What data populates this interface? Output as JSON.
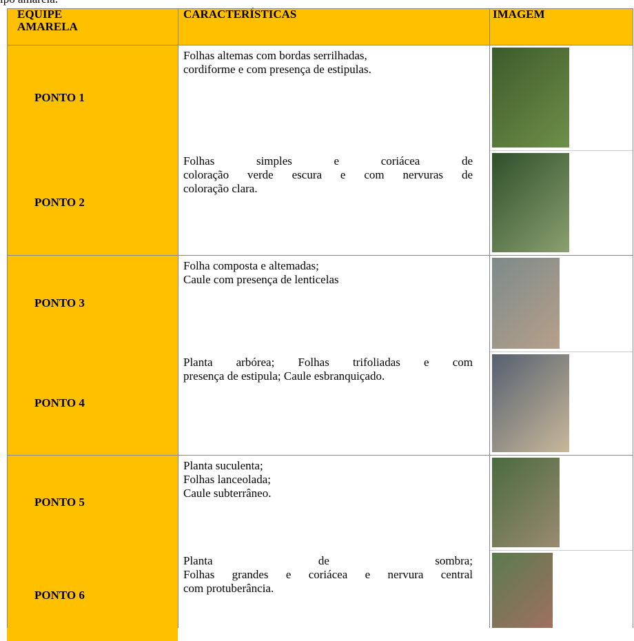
{
  "caption": "ipo amarela:",
  "table": {
    "header": [
      "EQUIPE AMARELA",
      "CARACTERÍSTICAS",
      "IMAGEM"
    ],
    "rows": [
      {
        "label": "PONTO 1",
        "lines": [
          "Folhas altemas com bordas serrilhadas,",
          "cordiforme e com presença de estipulas."
        ]
      },
      {
        "label": "PONTO 2",
        "lines": [
          "Folhas simples e coriácea de",
          "coloração verde escura e com nervuras de",
          "coloração clara."
        ]
      },
      {
        "label": "PONTO 3",
        "lines": [
          "Folha composta e altemadas;",
          "Caule com presença de lenticelas"
        ]
      },
      {
        "label": "PONTO 4",
        "lines": [
          "Planta arbórea; Folhas trifoliadas e com",
          "presença de estipula; Caule esbranquiçado."
        ]
      },
      {
        "label": "PONTO 5",
        "lines": [
          "Planta suculenta;",
          "Folhas lanceolada;",
          "Caule subterrâneo."
        ]
      },
      {
        "label": "PONTO 6",
        "lines": [
          "Planta de sombra;",
          "Folhas grandes e coriácea e nervura central",
          "com protuberância."
        ]
      }
    ]
  }
}
